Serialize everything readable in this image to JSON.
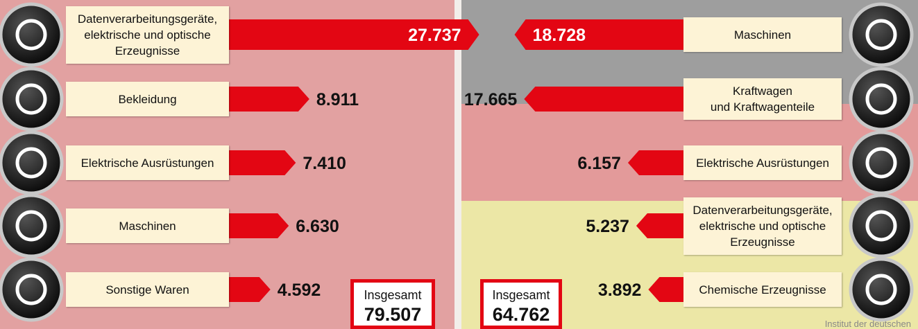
{
  "chart_data": [
    {
      "type": "bar",
      "orientation": "horizontal",
      "side": "left",
      "color": "#e30613",
      "categories": [
        "Datenverarbeitungsgeräte,\nelektrische und optische\nErzeugnisse",
        "Bekleidung",
        "Elektrische Ausrüstungen",
        "Maschinen",
        "Sonstige Waren"
      ],
      "values": [
        27737,
        8911,
        7410,
        6630,
        4592
      ],
      "value_labels": [
        "27.737",
        "8.911",
        "7.410",
        "6.630",
        "4.592"
      ],
      "total": {
        "label": "Insgesamt",
        "value": 79507,
        "value_label": "79.507"
      }
    },
    {
      "type": "bar",
      "orientation": "horizontal",
      "side": "right",
      "color": "#e30613",
      "categories": [
        "Maschinen",
        "Kraftwagen\nund Kraftwagenteile",
        "Elektrische Ausrüstungen",
        "Datenverarbeitungsgeräte,\nelektrische und optische\nErzeugnisse",
        "Chemische Erzeugnisse"
      ],
      "values": [
        18728,
        17665,
        6157,
        5237,
        3892
      ],
      "value_labels": [
        "18.728",
        "17.665",
        "6.157",
        "5.237",
        "3.892"
      ],
      "total": {
        "label": "Insgesamt",
        "value": 64762,
        "value_label": "64.762"
      }
    }
  ],
  "source": "Institut der deutschen"
}
